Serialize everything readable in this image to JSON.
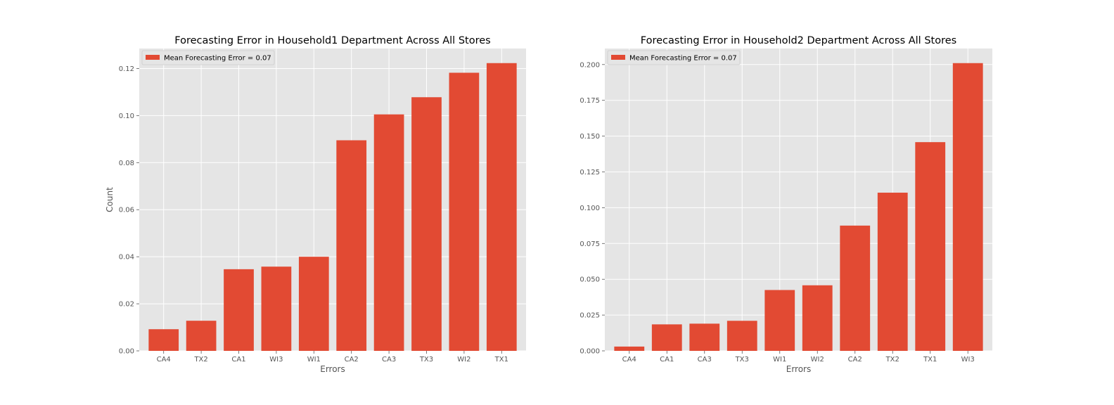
{
  "colors": {
    "bar": "#e24a33",
    "plot_background": "#e5e5e5",
    "grid": "#ffffff",
    "legend_background": "#e5e5e5",
    "legend_border": "#cccccc"
  },
  "chart_data": [
    {
      "type": "bar",
      "title": "Forecasting Error in Household1 Department Across All Stores",
      "xlabel": "Errors",
      "ylabel": "Count",
      "categories": [
        "CA4",
        "TX2",
        "CA1",
        "WI3",
        "WI1",
        "CA2",
        "CA3",
        "TX3",
        "WI2",
        "TX1"
      ],
      "series": [
        {
          "name": "Mean Forecasting Error = 0.07",
          "values": [
            0.0092,
            0.0128,
            0.0347,
            0.0358,
            0.04,
            0.0895,
            0.1005,
            0.1078,
            0.1182,
            0.1223
          ]
        }
      ],
      "ylim": [
        0,
        0.1285
      ],
      "yticks": [
        "0.00",
        "0.02",
        "0.04",
        "0.06",
        "0.08",
        "0.10",
        "0.12"
      ],
      "ytick_values": [
        0,
        0.02,
        0.04,
        0.06,
        0.08,
        0.1,
        0.12
      ],
      "grid": true,
      "legend_position": "top-left"
    },
    {
      "type": "bar",
      "title": "Forecasting Error in Household2 Department Across All Stores",
      "xlabel": "Errors",
      "ylabel": "",
      "categories": [
        "CA4",
        "CA1",
        "CA3",
        "TX3",
        "WI1",
        "WI2",
        "CA2",
        "TX2",
        "TX1",
        "WI3"
      ],
      "series": [
        {
          "name": "Mean Forecasting Error = 0.07",
          "values": [
            0.003,
            0.0185,
            0.019,
            0.021,
            0.0425,
            0.0458,
            0.0875,
            0.1105,
            0.1458,
            0.201
          ]
        }
      ],
      "ylim": [
        0,
        0.2112
      ],
      "yticks": [
        "0.000",
        "0.025",
        "0.050",
        "0.075",
        "0.100",
        "0.125",
        "0.150",
        "0.175",
        "0.200"
      ],
      "ytick_values": [
        0,
        0.025,
        0.05,
        0.075,
        0.1,
        0.125,
        0.15,
        0.175,
        0.2
      ],
      "grid": true,
      "legend_position": "top-left"
    }
  ]
}
